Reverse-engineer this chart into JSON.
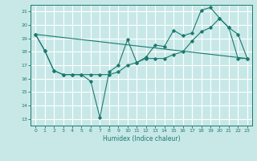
{
  "xlabel": "Humidex (Indice chaleur)",
  "background_color": "#c8e8e8",
  "grid_color": "#ffffff",
  "line_color": "#1a7a6e",
  "xlim": [
    -0.5,
    23.5
  ],
  "ylim": [
    12.5,
    21.5
  ],
  "xticks": [
    0,
    1,
    2,
    3,
    4,
    5,
    6,
    7,
    8,
    9,
    10,
    11,
    12,
    13,
    14,
    15,
    16,
    17,
    18,
    19,
    20,
    21,
    22,
    23
  ],
  "yticks": [
    13,
    14,
    15,
    16,
    17,
    18,
    19,
    20,
    21
  ],
  "series1_x": [
    0,
    1,
    2,
    3,
    4,
    5,
    6,
    7,
    8,
    9,
    10,
    11,
    12,
    13,
    14,
    15,
    16,
    17,
    18,
    19,
    20,
    21,
    22,
    23
  ],
  "series1_y": [
    19.3,
    18.1,
    16.6,
    16.3,
    16.3,
    16.3,
    15.8,
    13.1,
    16.5,
    17.0,
    18.9,
    17.2,
    17.6,
    18.5,
    18.4,
    19.6,
    19.2,
    19.4,
    21.1,
    21.3,
    20.5,
    19.8,
    19.3,
    17.5
  ],
  "series2_x": [
    0,
    1,
    2,
    3,
    4,
    5,
    6,
    7,
    8,
    9,
    10,
    11,
    12,
    13,
    14,
    15,
    16,
    17,
    18,
    19,
    20,
    21,
    22,
    23
  ],
  "series2_y": [
    19.3,
    18.1,
    16.6,
    16.3,
    16.3,
    16.3,
    16.3,
    16.3,
    16.3,
    16.5,
    17.0,
    17.2,
    17.5,
    17.5,
    17.5,
    17.8,
    18.0,
    18.8,
    19.5,
    19.8,
    20.5,
    19.8,
    17.5,
    17.5
  ],
  "series3_x": [
    0,
    23
  ],
  "series3_y": [
    19.3,
    17.5
  ]
}
